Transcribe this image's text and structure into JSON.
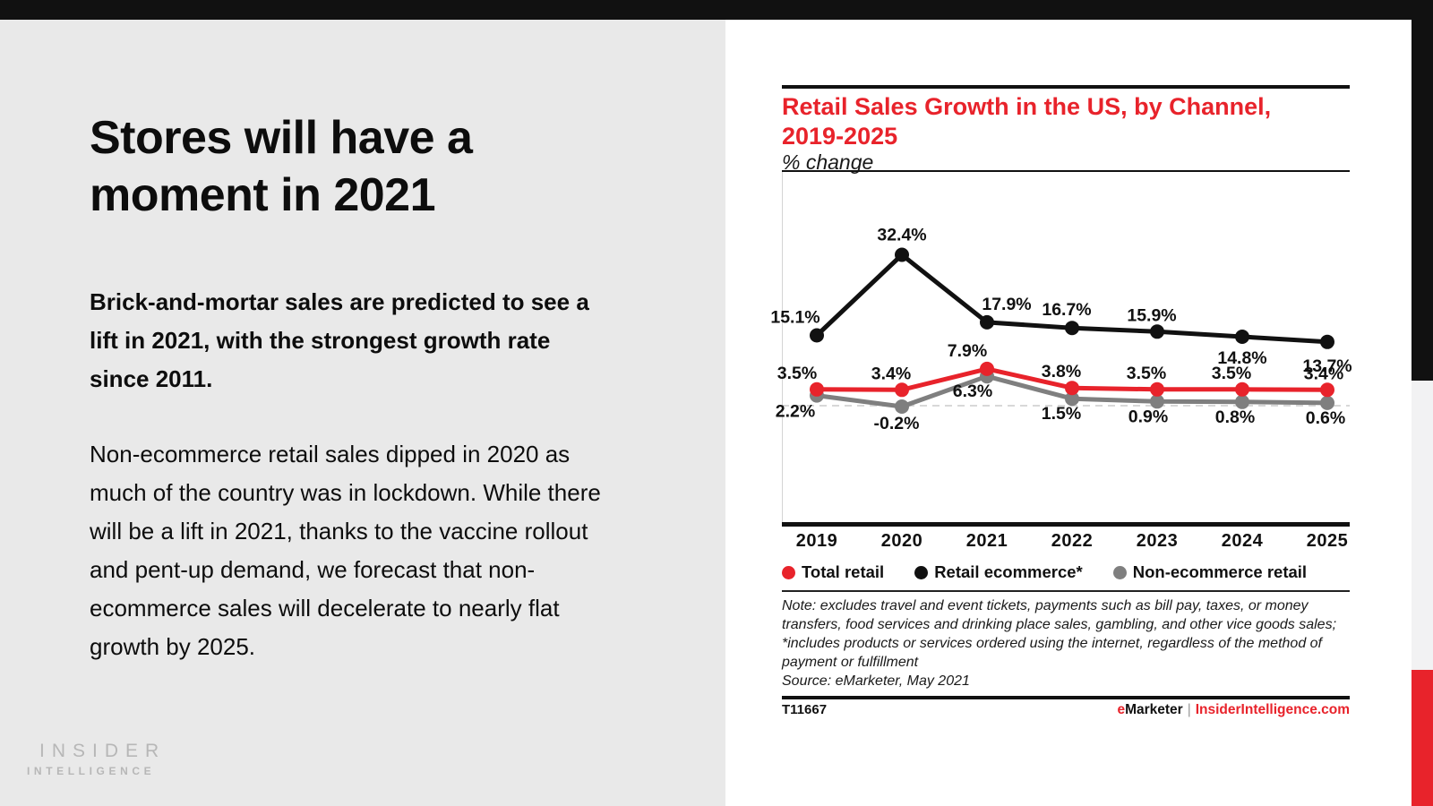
{
  "colors": {
    "accent_red": "#e8232b",
    "ink_black": "#111111",
    "series_gray": "#7f7f7f",
    "left_panel_bg": "#e9e9e9",
    "strip_gray": "#f2f2f3",
    "logo_gray": "#b7b7b7",
    "zero_line_gray": "#d8d8d8"
  },
  "left": {
    "title": "Stores will have a moment in 2021",
    "lead": "Brick-and-mortar sales are predicted to see a lift in 2021, with the strongest growth rate since 2011.",
    "body": "Non-ecommerce retail sales dipped in 2020 as much of the country was in lockdown. While there will be a lift in 2021, thanks to the vaccine rollout and pent-up demand, we forecast that non-ecommerce sales will decelerate to nearly flat growth by 2025.",
    "logo_line1": "INSIDER",
    "logo_line2": "INTELLIGENCE"
  },
  "chart_header": {
    "title_line1": "Retail Sales Growth in the US, by Channel,",
    "title_line2": "2019-2025",
    "subtitle": "% change"
  },
  "note": {
    "note": "Note: excludes travel and event tickets, payments such as bill pay, taxes, or money transfers, food services and drinking place sales, gambling, and other vice goods sales; *includes products or services ordered using the internet, regardless of the method of payment or fulfillment",
    "source": "Source: eMarketer, May 2021"
  },
  "footer": {
    "chart_id": "T11667",
    "brand": "eMarketer",
    "separator": "|",
    "site": "InsiderIntelligence.com"
  },
  "chart_data": {
    "type": "line",
    "title": "Retail Sales Growth in the US, by Channel, 2019-2025",
    "subtitle": "% change",
    "unit": "%",
    "categories": [
      "2019",
      "2020",
      "2021",
      "2022",
      "2023",
      "2024",
      "2025"
    ],
    "series": [
      {
        "name": "Total retail",
        "color": "#e8232b",
        "values": [
          3.5,
          3.4,
          7.9,
          3.8,
          3.5,
          3.5,
          3.4
        ]
      },
      {
        "name": "Retail ecommerce*",
        "color": "#111111",
        "values": [
          15.1,
          32.4,
          17.9,
          16.7,
          15.9,
          14.8,
          13.7
        ]
      },
      {
        "name": "Non-ecommerce retail",
        "color": "#7f7f7f",
        "values": [
          2.2,
          -0.2,
          6.3,
          1.5,
          0.9,
          0.8,
          0.6
        ]
      }
    ],
    "ylim": [
      -24,
      50
    ],
    "zero_baseline": "dashed",
    "grid": false,
    "legend_position": "bottom",
    "data_labels": true
  }
}
